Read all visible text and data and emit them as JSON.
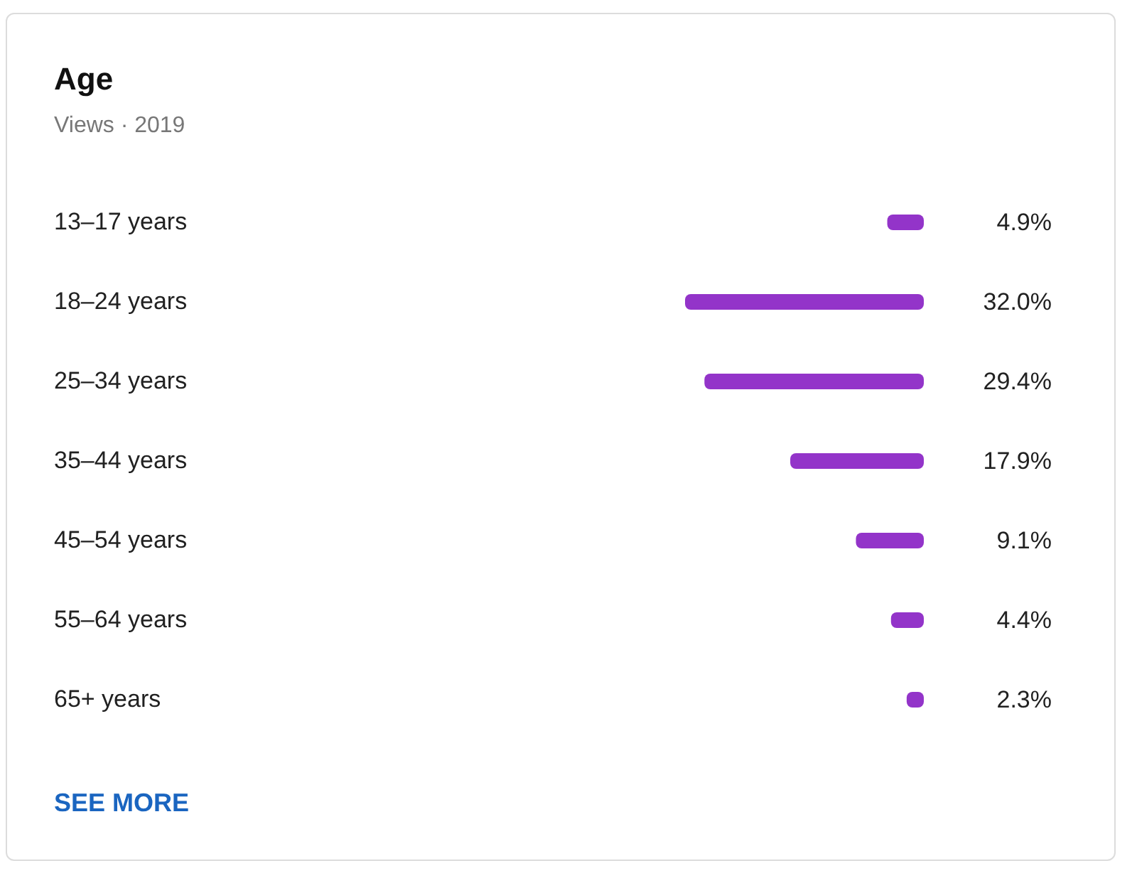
{
  "chart_data": {
    "type": "bar",
    "orientation": "horizontal",
    "title": "Age",
    "subtitle": "Views · 2019",
    "categories": [
      "13–17 years",
      "18–24 years",
      "25–34 years",
      "35–44 years",
      "45–54 years",
      "55–64 years",
      "65+ years"
    ],
    "values": [
      4.9,
      32.0,
      29.4,
      17.9,
      9.1,
      4.4,
      2.3
    ],
    "value_labels": [
      "4.9%",
      "32.0%",
      "29.4%",
      "17.9%",
      "9.1%",
      "4.4%",
      "2.3%"
    ],
    "color": "#9334c9",
    "xlim": [
      32.0,
      0
    ],
    "tick_labels": "y",
    "annotations": [
      "SEE MORE"
    ]
  }
}
